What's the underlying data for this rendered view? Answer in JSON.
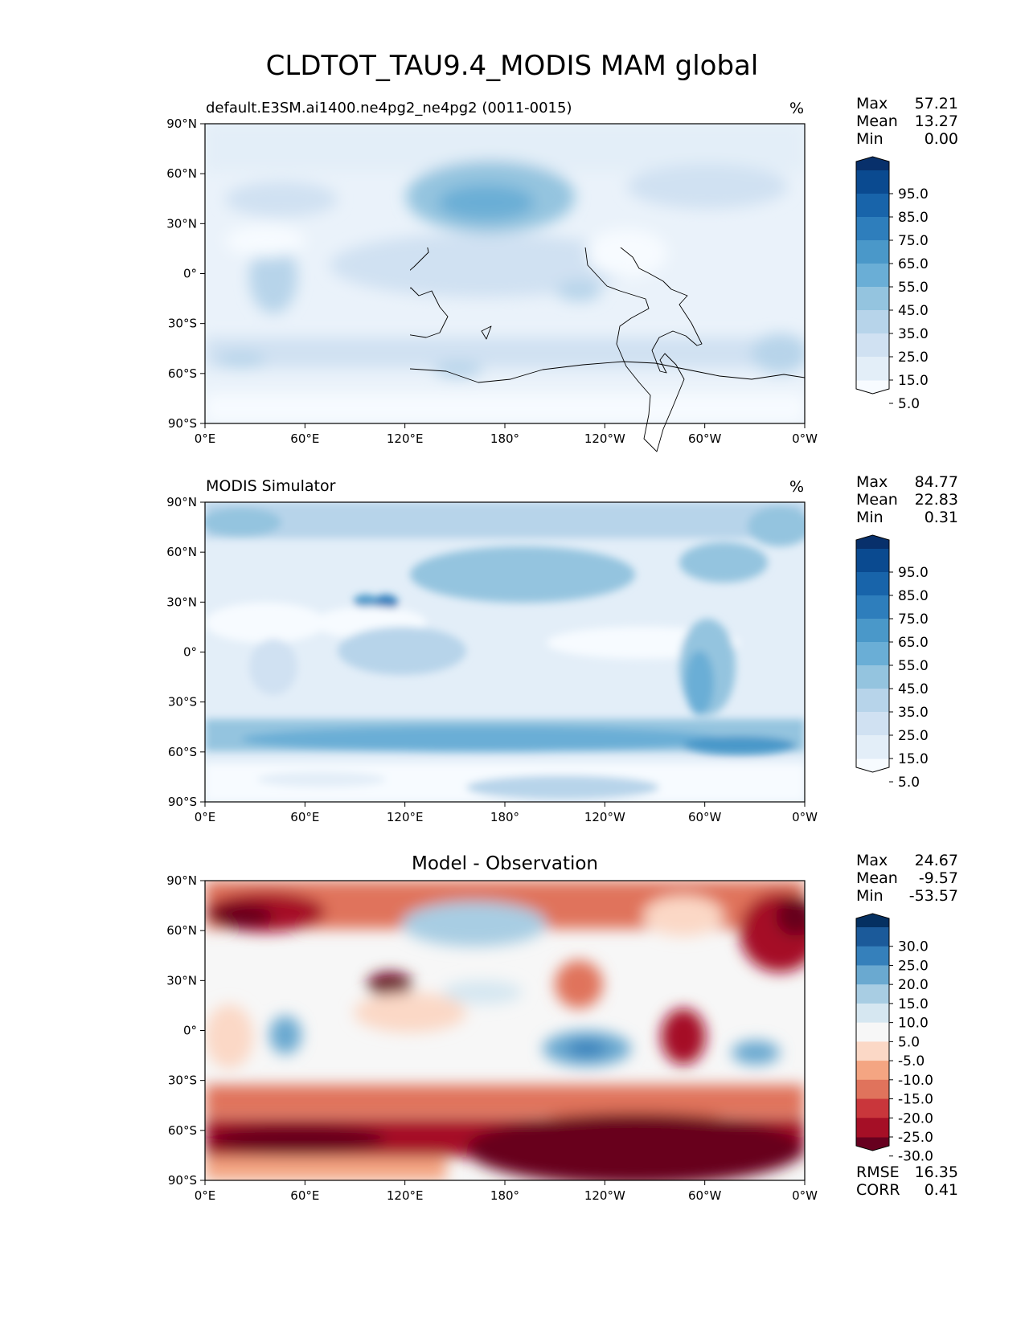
{
  "figure": {
    "title": "CLDTOT_TAU9.4_MODIS MAM global"
  },
  "axes": {
    "lat_ticks": [
      "90°N",
      "60°N",
      "30°N",
      "0°",
      "30°S",
      "60°S",
      "90°S"
    ],
    "lon_ticks": [
      "0°E",
      "60°E",
      "120°E",
      "180°",
      "120°W",
      "60°W",
      "0°W"
    ]
  },
  "stat_labels": {
    "max": "Max",
    "mean": "Mean",
    "min": "Min",
    "rmse": "RMSE",
    "corr": "CORR"
  },
  "panels": [
    {
      "left_title": "default.E3SM.ai1400.ne4pg2_ne4pg2 (0011-0015)",
      "center_title": "",
      "units": "%",
      "stats": {
        "max": "57.21",
        "mean": "13.27",
        "min": "0.00"
      },
      "colorbar": {
        "colors": [
          "#f7fbff",
          "#e3eef8",
          "#d0e1f2",
          "#b7d4ea",
          "#94c4df",
          "#6aaed6",
          "#4a98c9",
          "#2e7ebc",
          "#1864aa",
          "#0a4a90",
          "#08306b"
        ],
        "labels": [
          "95.0",
          "85.0",
          "75.0",
          "65.0",
          "55.0",
          "45.0",
          "35.0",
          "25.0",
          "15.0",
          "5.0"
        ]
      }
    },
    {
      "left_title": "MODIS Simulator",
      "center_title": "",
      "units": "%",
      "stats": {
        "max": "84.77",
        "mean": "22.83",
        "min": "0.31"
      },
      "colorbar": {
        "colors": [
          "#f7fbff",
          "#e3eef8",
          "#d0e1f2",
          "#b7d4ea",
          "#94c4df",
          "#6aaed6",
          "#4a98c9",
          "#2e7ebc",
          "#1864aa",
          "#0a4a90",
          "#08306b"
        ],
        "labels": [
          "95.0",
          "85.0",
          "75.0",
          "65.0",
          "55.0",
          "45.0",
          "35.0",
          "25.0",
          "15.0",
          "5.0"
        ]
      }
    },
    {
      "left_title": "",
      "center_title": "Model - Observation",
      "units": "",
      "stats": {
        "max": "24.67",
        "mean": "-9.57",
        "min": "-53.57",
        "rmse": "16.35",
        "corr": "0.41"
      },
      "colorbar": {
        "colors": [
          "#67001f",
          "#a50f26",
          "#c9363b",
          "#e0735c",
          "#f4a582",
          "#fbd8c6",
          "#f7f7f7",
          "#d6e7f1",
          "#a8cde3",
          "#6aa9d0",
          "#3580bb",
          "#1b5a9a",
          "#053061"
        ],
        "labels": [
          "30.0",
          "25.0",
          "20.0",
          "15.0",
          "10.0",
          "5.0",
          "-5.0",
          "-10.0",
          "-15.0",
          "-20.0",
          "-25.0",
          "-30.0"
        ]
      }
    }
  ]
}
